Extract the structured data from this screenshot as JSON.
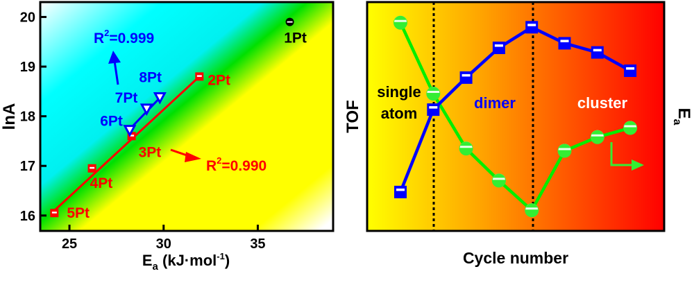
{
  "chart_data": [
    {
      "type": "scatter",
      "xlabel": "E",
      "xlabel_sub": "a",
      "xlabel_unit": " (kJ·mol",
      "xlabel_sup": "-1",
      "xlabel_close": ")",
      "ylabel": "lnA",
      "xlim": [
        23.45,
        39.0
      ],
      "ylim": [
        15.69,
        20.3
      ],
      "xticks": [
        25,
        30,
        35
      ],
      "yticks": [
        16,
        17,
        18,
        19,
        20
      ],
      "points": [
        {
          "label": "1Pt",
          "x": 36.7,
          "y": 19.9,
          "color": "#000000",
          "marker": "circle"
        },
        {
          "label": "2Pt",
          "x": 31.9,
          "y": 18.8,
          "color": "#ff0000",
          "marker": "square"
        },
        {
          "label": "3Pt",
          "x": 28.3,
          "y": 17.6,
          "color": "#ff0000",
          "marker": "square"
        },
        {
          "label": "4Pt",
          "x": 26.2,
          "y": 16.95,
          "color": "#ff0000",
          "marker": "square"
        },
        {
          "label": "5Pt",
          "x": 24.2,
          "y": 16.05,
          "color": "#ff0000",
          "marker": "square"
        },
        {
          "label": "6Pt",
          "x": 28.2,
          "y": 17.72,
          "color": "#0000ff",
          "marker": "triangle-down"
        },
        {
          "label": "7Pt",
          "x": 29.1,
          "y": 18.15,
          "color": "#0000ff",
          "marker": "triangle-down"
        },
        {
          "label": "8Pt",
          "x": 29.8,
          "y": 18.38,
          "color": "#0000ff",
          "marker": "triangle-down"
        }
      ],
      "fits": [
        {
          "name": "red fit",
          "color": "#ff0000",
          "from": [
            24.2,
            16.1
          ],
          "to": [
            31.9,
            18.8
          ],
          "r2_label": "R",
          "r2_sup": "2",
          "r2_value": "=0.990"
        },
        {
          "name": "blue fit",
          "color": "#0000ff",
          "from": [
            28.1,
            17.7
          ],
          "to": [
            30.0,
            18.45
          ],
          "r2_label": "R",
          "r2_sup": "2",
          "r2_value": "=0.999"
        }
      ]
    },
    {
      "type": "line",
      "xlabel": "Cycle number",
      "ylabel_left": "TOF",
      "ylabel_right": "E",
      "ylabel_right_sub": "a",
      "x": [
        1,
        2,
        3,
        4,
        5,
        6,
        7,
        8
      ],
      "ylim": [
        0,
        100
      ],
      "series": [
        {
          "name": "TOF",
          "color": "#0000ff",
          "marker": "square",
          "values": [
            17,
            53,
            67,
            80,
            89,
            82,
            78,
            70
          ]
        },
        {
          "name": "Ea",
          "color": "#00ee00",
          "marker": "circle",
          "values": [
            91,
            60,
            36,
            22,
            9,
            35,
            41,
            45
          ]
        }
      ],
      "dividers": [
        2,
        5
      ],
      "regions": [
        {
          "line1": "single",
          "line2": "atom",
          "color": "#000000"
        },
        {
          "line1": "dimer",
          "color": "#0000ff"
        },
        {
          "line1": "cluster",
          "color": "#ffffff"
        }
      ],
      "colors": {
        "bg_start": "#ffff00",
        "bg_mid": "#ffa500",
        "bg_end": "#ff0000"
      }
    }
  ]
}
